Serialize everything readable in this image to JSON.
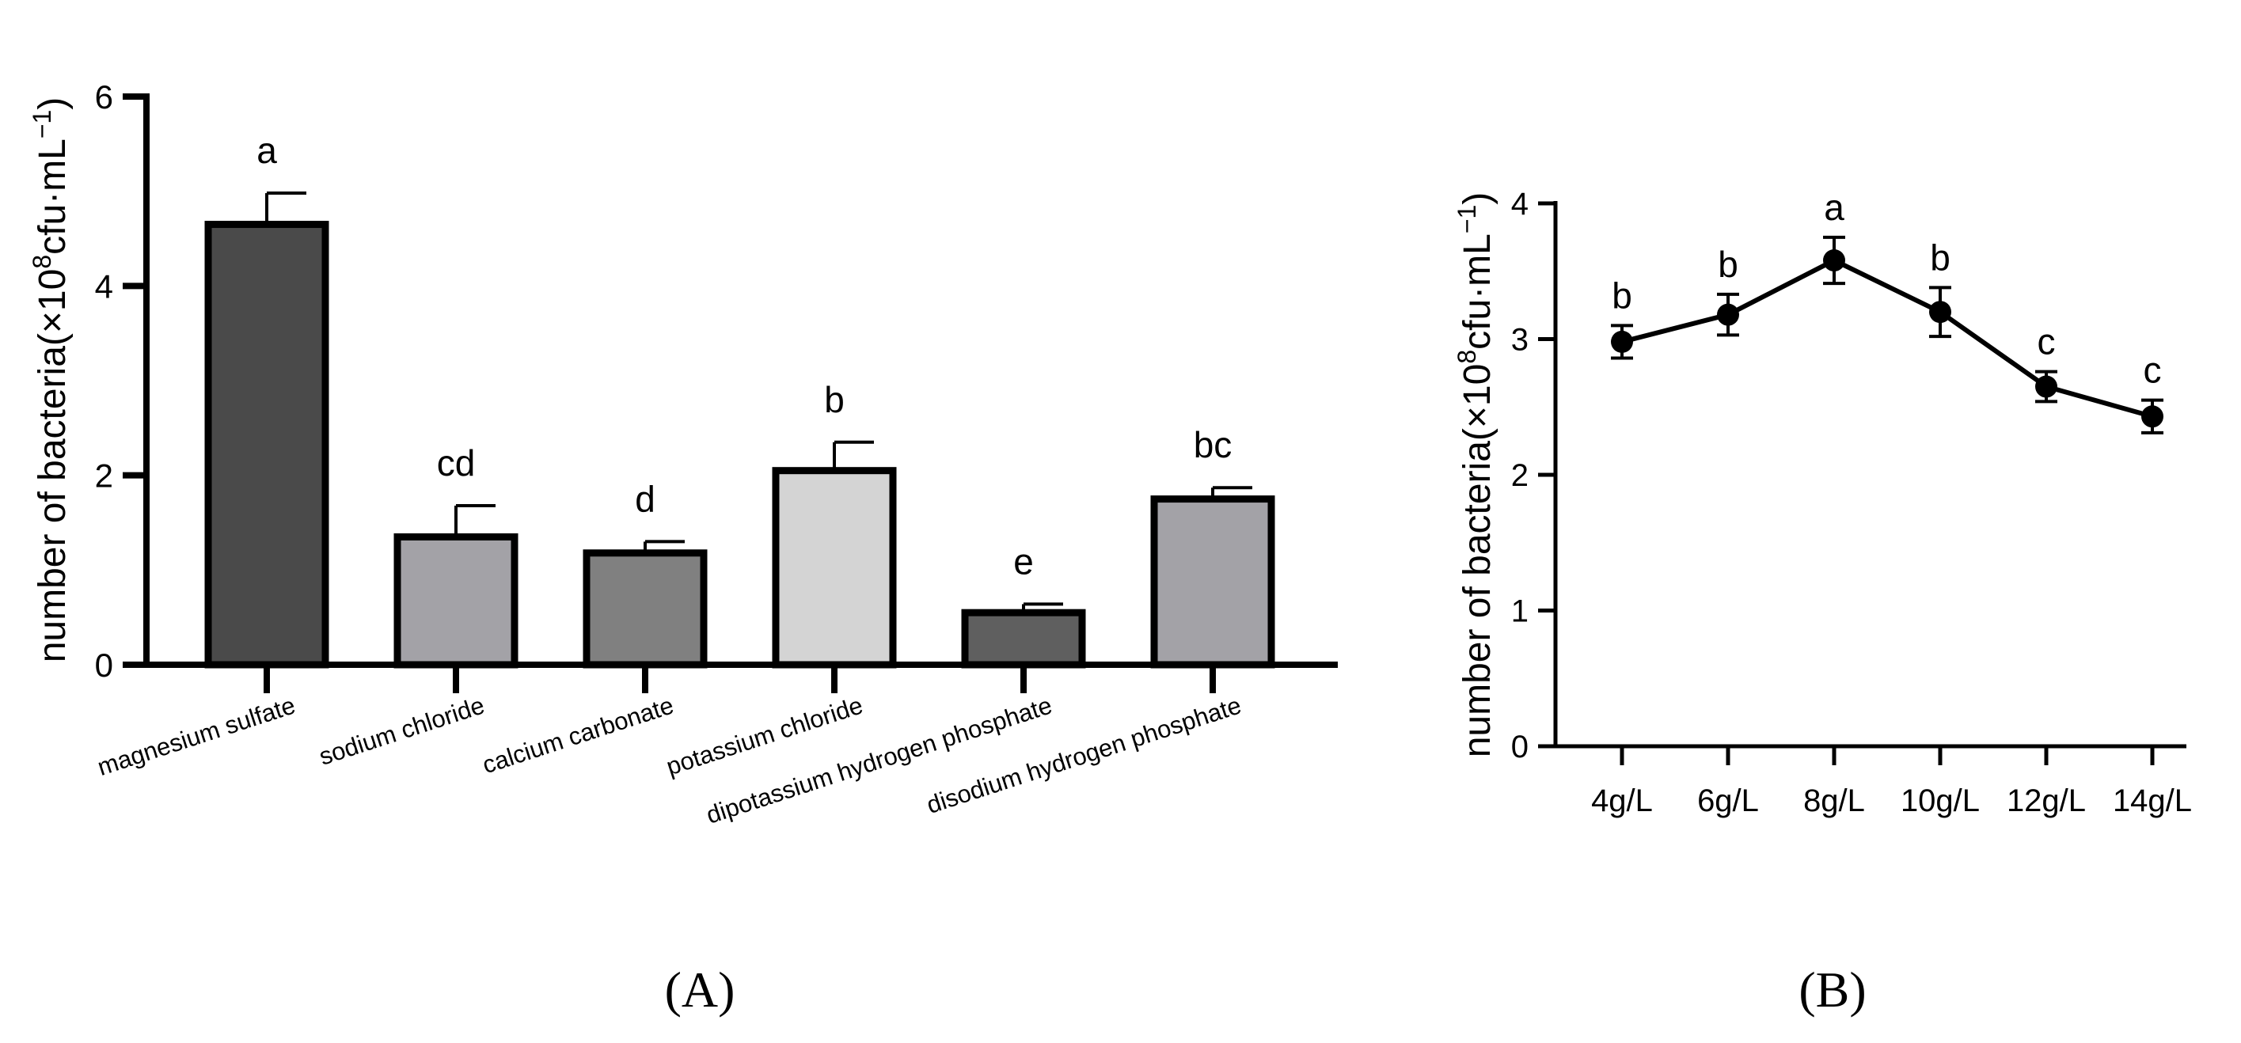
{
  "chart_data": [
    {
      "panel": "A",
      "type": "bar",
      "ylabel_main": "number of bacteria(×10",
      "ylabel_sup": "8",
      "ylabel_mid": "cfu·mL",
      "ylabel_sup2": "−1",
      "ylabel_end": ")",
      "ylim": [
        0,
        6
      ],
      "yticks": [
        "0",
        "2",
        "4",
        "6"
      ],
      "categories": [
        "magnesium sulfate",
        "sodium chloride",
        "calcium carbonate",
        "potassium chloride",
        "dipotassium hydrogen phosphate",
        "disodium hydrogen phosphate"
      ],
      "values": [
        4.65,
        1.35,
        1.18,
        2.05,
        0.55,
        1.75
      ],
      "errors": [
        0.33,
        0.33,
        0.12,
        0.3,
        0.09,
        0.12
      ],
      "letters": [
        "a",
        "cd",
        "d",
        "b",
        "e",
        "bc"
      ],
      "colors": [
        "#4a4a4a",
        "#a3a2a7",
        "#808080",
        "#d4d4d4",
        "#5f5f5f",
        "#a3a2a7"
      ]
    },
    {
      "panel": "B",
      "type": "line",
      "ylabel_main": "number of bacteria(×10",
      "ylabel_sup": "8",
      "ylabel_mid": "cfu·mL",
      "ylabel_sup2": "−1",
      "ylabel_end": ")",
      "ylim": [
        0,
        4
      ],
      "yticks": [
        "0",
        "1",
        "2",
        "3",
        "4"
      ],
      "categories": [
        "4g/L",
        "6g/L",
        "8g/L",
        "10g/L",
        "12g/L",
        "14g/L"
      ],
      "values": [
        2.98,
        3.18,
        3.58,
        3.2,
        2.65,
        2.43
      ],
      "errors": [
        0.12,
        0.15,
        0.17,
        0.18,
        0.11,
        0.12
      ],
      "letters": [
        "b",
        "b",
        "a",
        "b",
        "c",
        "c"
      ]
    }
  ],
  "panel_labels": [
    "(A)",
    "(B)"
  ]
}
